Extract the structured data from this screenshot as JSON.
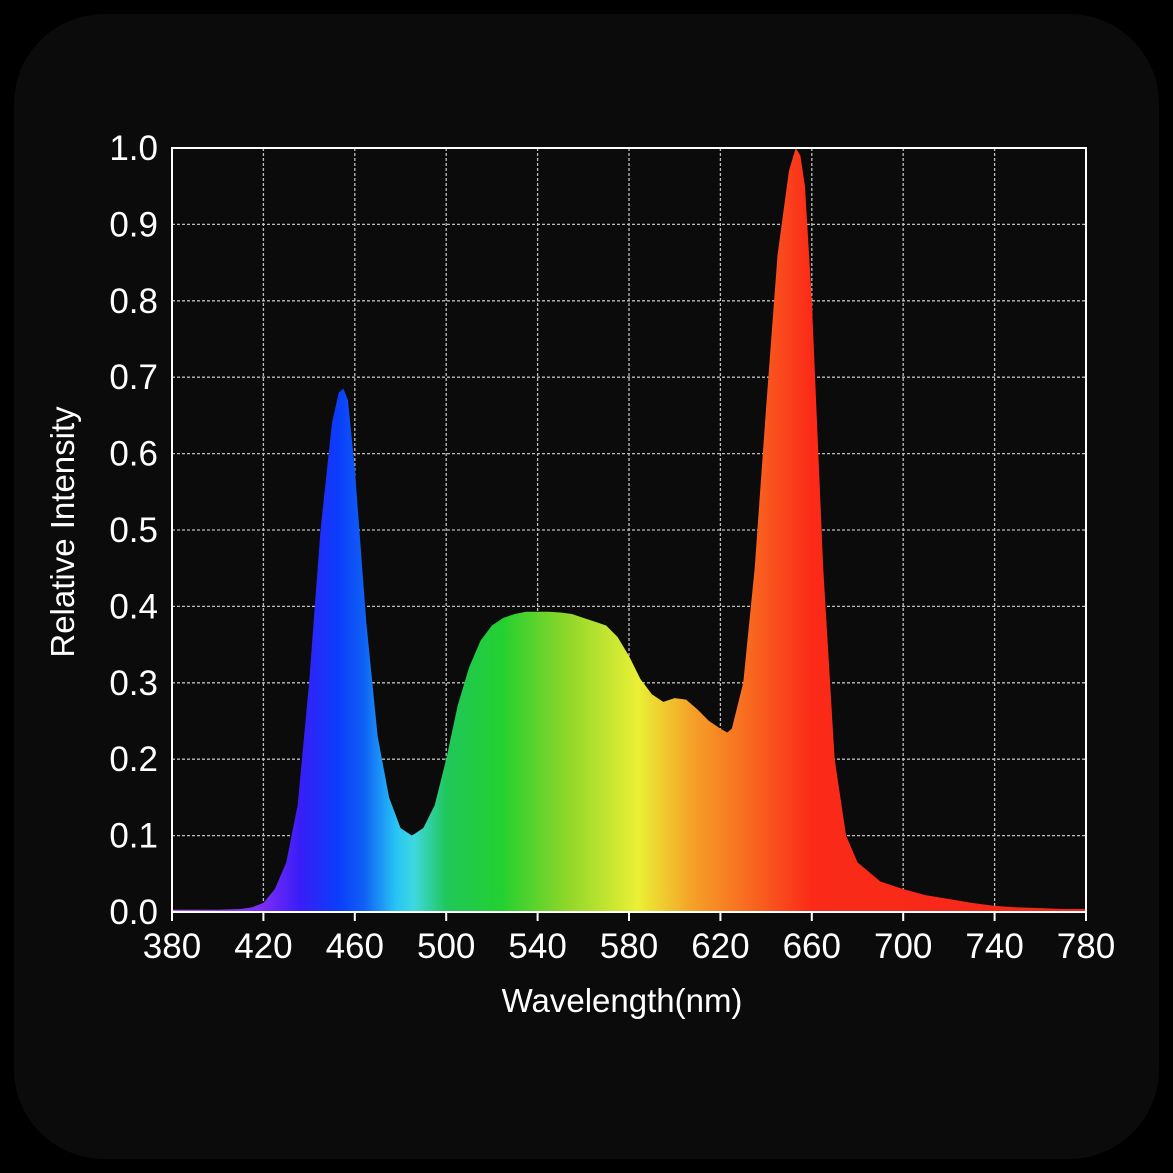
{
  "chart_data": {
    "type": "area",
    "title": "",
    "xlabel": "Wavelength(nm)",
    "ylabel": "Relative Intensity",
    "xlim": [
      380,
      780
    ],
    "ylim": [
      0,
      1.0
    ],
    "grid": true,
    "x_ticks": [
      "380",
      "420",
      "460",
      "500",
      "540",
      "580",
      "620",
      "660",
      "700",
      "740",
      "780"
    ],
    "y_ticks": [
      "0.0",
      "0.1",
      "0.2",
      "0.3",
      "0.4",
      "0.5",
      "0.6",
      "0.7",
      "0.8",
      "0.9",
      "1.0"
    ],
    "fill": "wavelength spectrum gradient",
    "series": [
      {
        "x": [
          380,
          390,
          400,
          410,
          415,
          420,
          425,
          430,
          435,
          440,
          445,
          450,
          453,
          455,
          457,
          460,
          465,
          470,
          475,
          480,
          485,
          490,
          495,
          500,
          505,
          510,
          515,
          520,
          525,
          530,
          535,
          540,
          545,
          550,
          555,
          560,
          565,
          570,
          575,
          580,
          585,
          590,
          595,
          600,
          605,
          610,
          615,
          620,
          623,
          625,
          630,
          635,
          640,
          645,
          650,
          653,
          655,
          657,
          660,
          665,
          670,
          675,
          680,
          690,
          700,
          710,
          720,
          730,
          740,
          750,
          760,
          770,
          780
        ],
        "y": [
          0.003,
          0.003,
          0.003,
          0.004,
          0.006,
          0.012,
          0.03,
          0.065,
          0.14,
          0.3,
          0.5,
          0.64,
          0.68,
          0.685,
          0.67,
          0.58,
          0.38,
          0.23,
          0.15,
          0.11,
          0.1,
          0.11,
          0.14,
          0.2,
          0.27,
          0.32,
          0.355,
          0.375,
          0.385,
          0.39,
          0.393,
          0.393,
          0.393,
          0.392,
          0.39,
          0.385,
          0.38,
          0.375,
          0.36,
          0.335,
          0.305,
          0.285,
          0.275,
          0.28,
          0.278,
          0.265,
          0.25,
          0.24,
          0.235,
          0.24,
          0.3,
          0.45,
          0.66,
          0.86,
          0.97,
          1.0,
          0.99,
          0.95,
          0.8,
          0.45,
          0.2,
          0.1,
          0.065,
          0.04,
          0.03,
          0.022,
          0.017,
          0.012,
          0.008,
          0.006,
          0.005,
          0.004,
          0.004
        ]
      }
    ]
  }
}
